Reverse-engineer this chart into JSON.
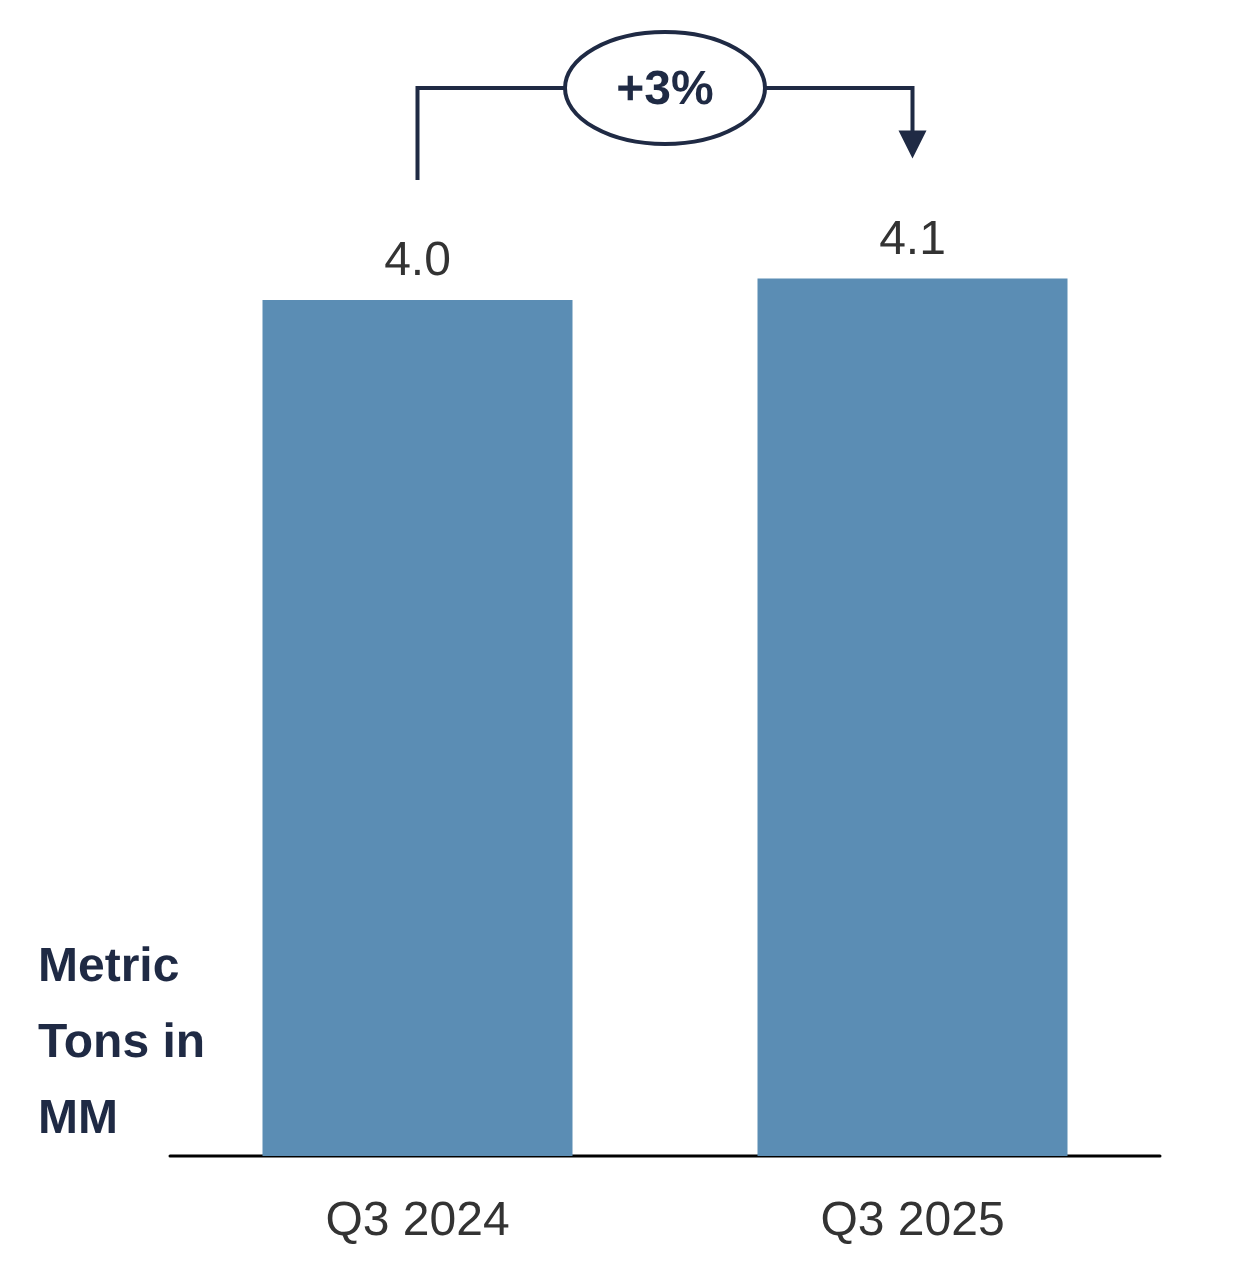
{
  "chart_data": {
    "type": "bar",
    "categories": [
      "Q3 2024",
      "Q3 2025"
    ],
    "values": [
      4.0,
      4.1
    ],
    "value_labels": [
      "4.0",
      "4.1"
    ],
    "color": "#5b8db4",
    "ylabel": "Metric Tons in MM",
    "annotations": [
      "+3%"
    ]
  }
}
